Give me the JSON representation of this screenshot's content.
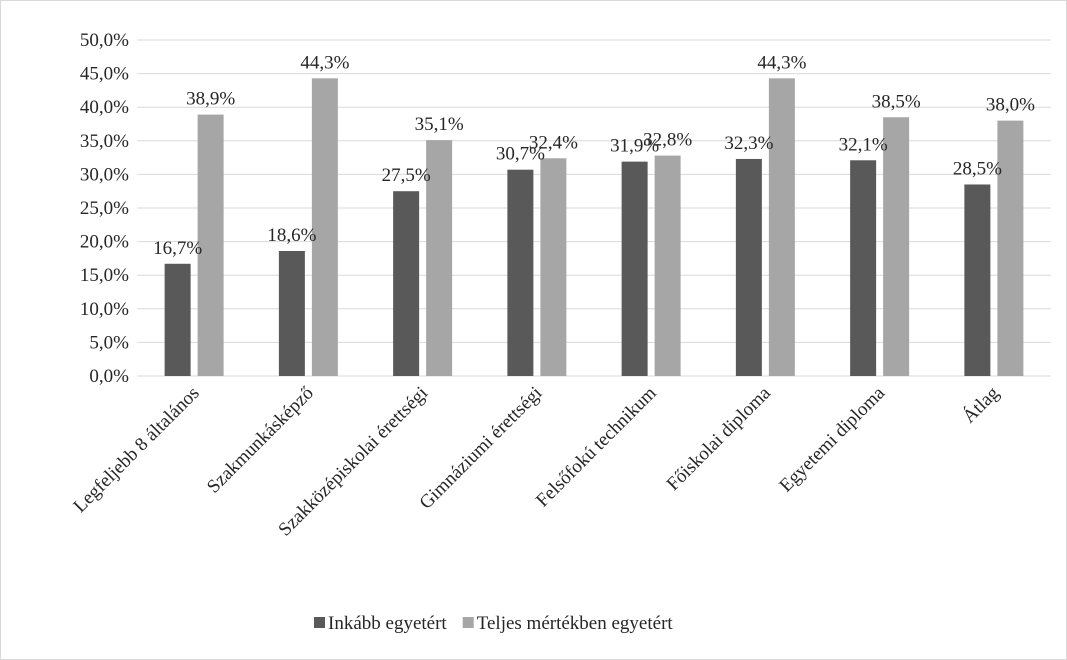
{
  "chart_data": {
    "type": "bar",
    "categories": [
      "Legfeljebb 8 általános",
      "Szakmunkásképző",
      "Szakközépiskolai érettségi",
      "Gimnáziumi érettségi",
      "Felsőfokú technikum",
      "Főiskolai diploma",
      "Egyetemi diploma",
      "Átlag"
    ],
    "series": [
      {
        "name": "Inkább egyetért",
        "color": "#595959",
        "values": [
          16.7,
          18.6,
          27.5,
          30.7,
          31.9,
          32.3,
          32.1,
          28.5
        ],
        "labels": [
          "16,7%",
          "18,6%",
          "27,5%",
          "30,7%",
          "31,9%",
          "32,3%",
          "32,1%",
          "28,5%"
        ]
      },
      {
        "name": "Teljes mértékben egyetért",
        "color": "#a6a6a6",
        "values": [
          38.9,
          44.3,
          35.1,
          32.4,
          32.8,
          44.3,
          38.5,
          38.0
        ],
        "labels": [
          "38,9%",
          "44,3%",
          "35,1%",
          "32,4%",
          "32,8%",
          "44,3%",
          "38,5%",
          "38,0%"
        ]
      }
    ],
    "title": "",
    "xlabel": "",
    "ylabel": "",
    "ylim": [
      0,
      50
    ],
    "yticks": [
      0,
      5,
      10,
      15,
      20,
      25,
      30,
      35,
      40,
      45,
      50
    ],
    "ytick_labels": [
      "0,0%",
      "5,0%",
      "10,0%",
      "15,0%",
      "20,0%",
      "25,0%",
      "30,0%",
      "35,0%",
      "40,0%",
      "45,0%",
      "50,0%"
    ],
    "grid": true,
    "legend": "bottom"
  }
}
